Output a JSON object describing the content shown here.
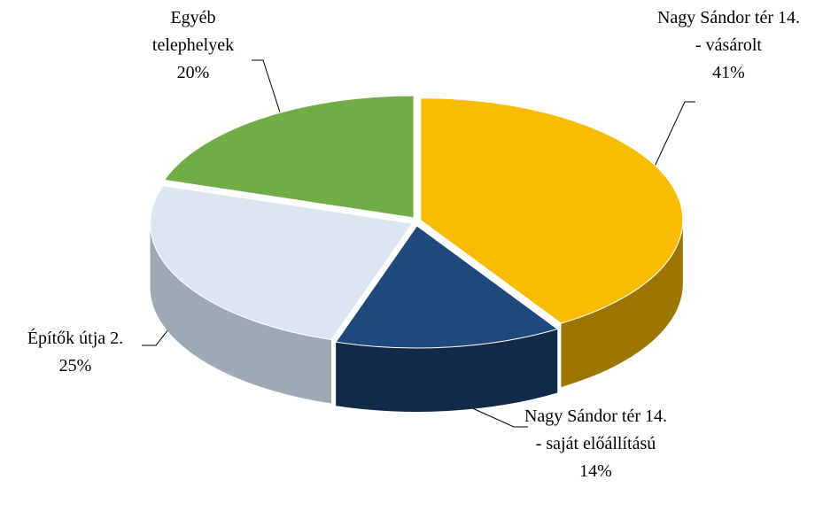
{
  "chart_data": {
    "type": "pie3d",
    "categories": [
      "Nagy Sándor tér 14. - vásárolt",
      "Nagy Sándor tér 14. - saját előállítású",
      "Építők útja 2.",
      "Egyéb telephelyek"
    ],
    "values": [
      41,
      14,
      25,
      20
    ],
    "value_labels": [
      "41%",
      "14%",
      "25%",
      "20%"
    ],
    "colors": [
      "#f9bc00",
      "#1f497d",
      "#dce6f2",
      "#70ad47"
    ],
    "side_colors": [
      "#9c7600",
      "#112a4a",
      "#9ea9b6",
      "#44702a"
    ]
  }
}
